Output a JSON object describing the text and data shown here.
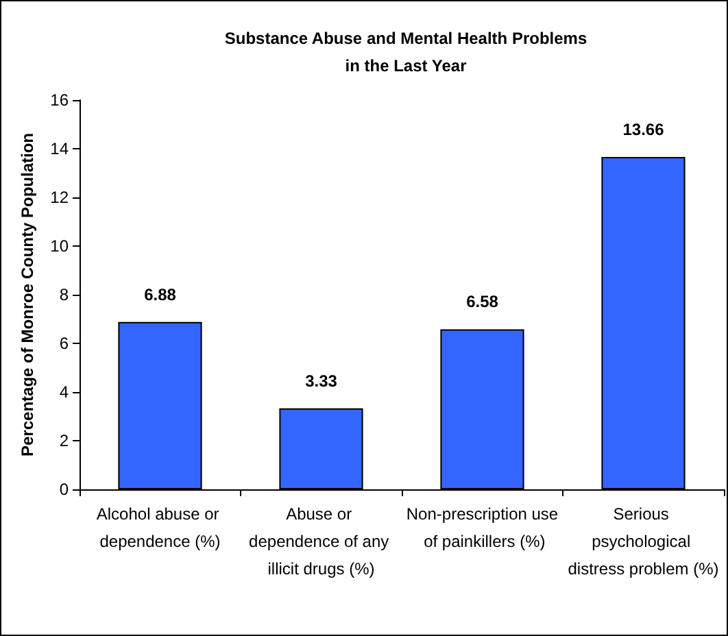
{
  "chart_data": {
    "type": "bar",
    "title": "Substance Abuse and Mental Health Problems\nin the Last Year",
    "ylabel": "Percentage of Monroe County Population",
    "categories": [
      "Alcohol abuse or dependence (%)",
      "Abuse or dependence of any illicit drugs (%)",
      "Non-prescription use of painkillers (%)",
      "Serious psychological distress problem (%)"
    ],
    "values": [
      6.88,
      3.33,
      6.58,
      13.66
    ],
    "color": "#3366ff",
    "ylim": [
      0,
      16
    ],
    "yticks": [
      0,
      2,
      4,
      6,
      8,
      10,
      12,
      14,
      16
    ],
    "grid": false,
    "data_labels": true
  }
}
